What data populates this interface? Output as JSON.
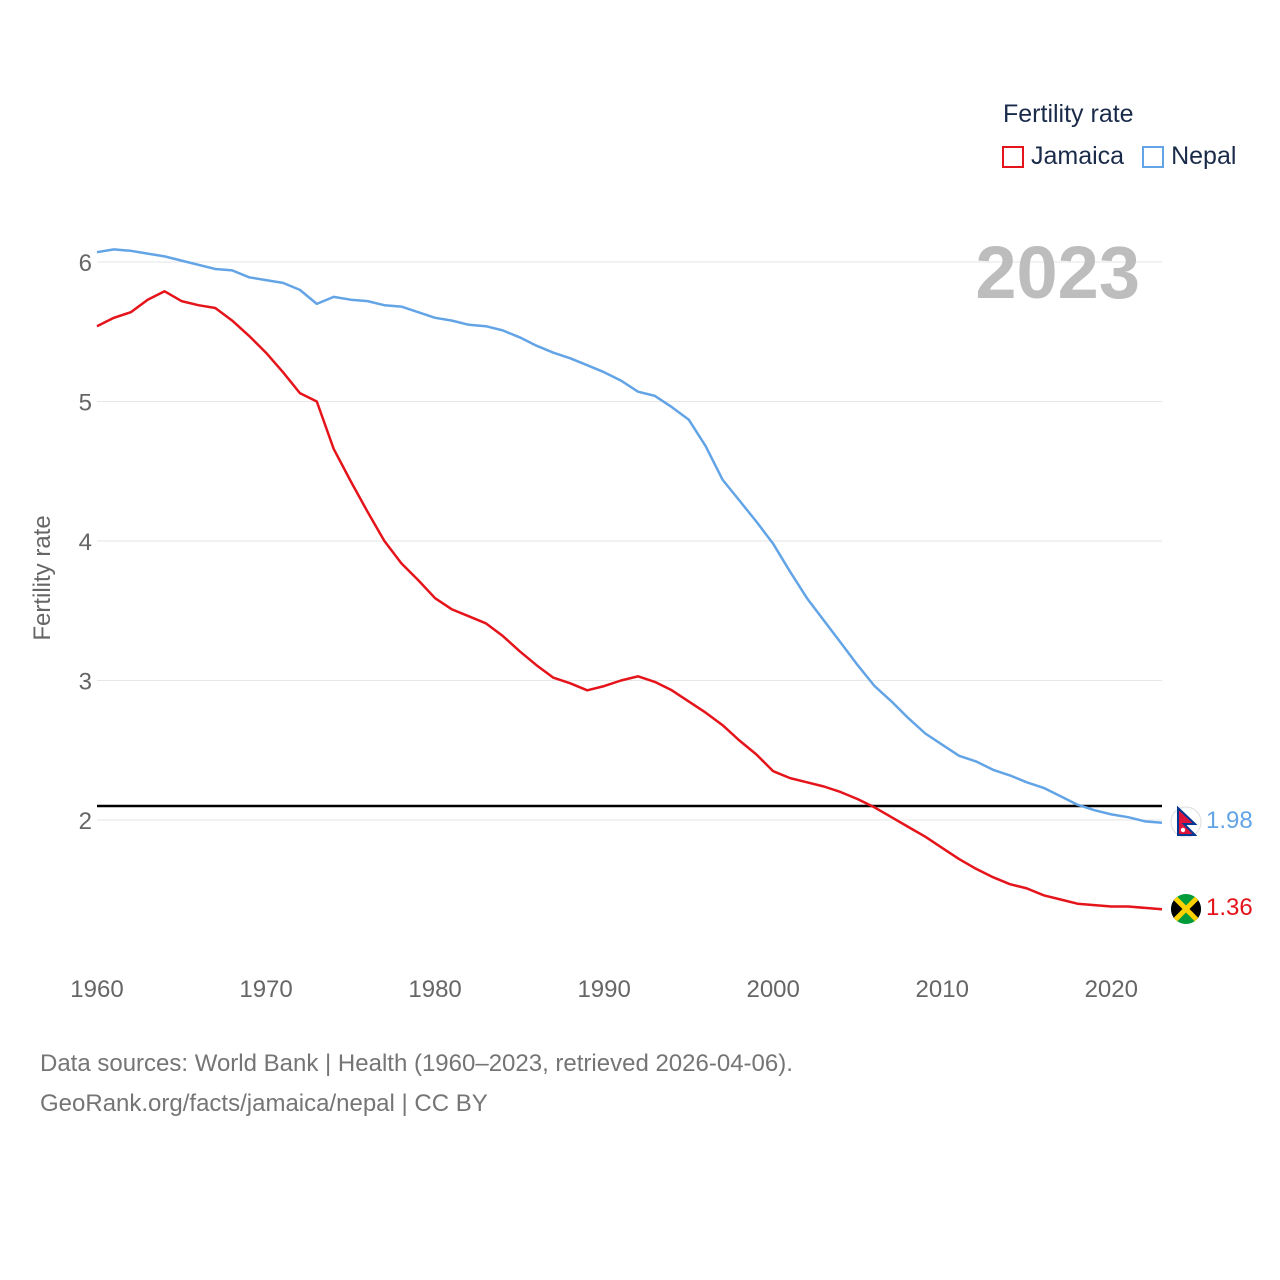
{
  "chart_data": {
    "type": "line",
    "ylabel": "Fertility rate",
    "xlabel": "",
    "year_label": "2023",
    "xlim": [
      1960,
      2023
    ],
    "ylim": [
      1.2,
      6.3
    ],
    "xticks": [
      1960,
      1970,
      1980,
      1990,
      2000,
      2010,
      2020
    ],
    "yticks": [
      2,
      3,
      4,
      5,
      6
    ],
    "reference_line": 2.1,
    "grid": true,
    "legend": {
      "title": "Fertility rate",
      "placement": "top-right",
      "items": [
        {
          "name": "Jamaica",
          "color": "#e5141b"
        },
        {
          "name": "Nepal",
          "color": "#63a4e6"
        }
      ]
    },
    "x": [
      1960,
      1961,
      1962,
      1963,
      1964,
      1965,
      1966,
      1967,
      1968,
      1969,
      1970,
      1971,
      1972,
      1973,
      1974,
      1975,
      1976,
      1977,
      1978,
      1979,
      1980,
      1981,
      1982,
      1983,
      1984,
      1985,
      1986,
      1987,
      1988,
      1989,
      1990,
      1991,
      1992,
      1993,
      1994,
      1995,
      1996,
      1997,
      1998,
      1999,
      2000,
      2001,
      2002,
      2003,
      2004,
      2005,
      2006,
      2007,
      2008,
      2009,
      2010,
      2011,
      2012,
      2013,
      2014,
      2015,
      2016,
      2017,
      2018,
      2019,
      2020,
      2021,
      2022,
      2023
    ],
    "series": [
      {
        "name": "Jamaica",
        "color": "#e5141b",
        "end_label": "1.36",
        "values": [
          5.54,
          5.6,
          5.64,
          5.73,
          5.79,
          5.72,
          5.69,
          5.67,
          5.58,
          5.47,
          5.35,
          5.21,
          5.06,
          5.0,
          4.66,
          4.43,
          4.21,
          4.0,
          3.84,
          3.72,
          3.59,
          3.51,
          3.46,
          3.41,
          3.32,
          3.21,
          3.11,
          3.02,
          2.98,
          2.93,
          2.96,
          3.0,
          3.03,
          2.99,
          2.93,
          2.85,
          2.77,
          2.68,
          2.57,
          2.47,
          2.35,
          2.3,
          2.27,
          2.24,
          2.2,
          2.15,
          2.09,
          2.02,
          1.95,
          1.88,
          1.8,
          1.72,
          1.65,
          1.59,
          1.54,
          1.51,
          1.46,
          1.43,
          1.4,
          1.39,
          1.38,
          1.38,
          1.37,
          1.36
        ]
      },
      {
        "name": "Nepal",
        "color": "#63a4e6",
        "end_label": "1.98",
        "values": [
          6.07,
          6.09,
          6.08,
          6.06,
          6.04,
          6.01,
          5.98,
          5.95,
          5.94,
          5.89,
          5.87,
          5.85,
          5.8,
          5.7,
          5.75,
          5.73,
          5.72,
          5.69,
          5.68,
          5.64,
          5.6,
          5.58,
          5.55,
          5.54,
          5.51,
          5.46,
          5.4,
          5.35,
          5.31,
          5.26,
          5.21,
          5.15,
          5.07,
          5.04,
          4.96,
          4.87,
          4.68,
          4.44,
          4.29,
          4.14,
          3.98,
          3.78,
          3.59,
          3.43,
          3.27,
          3.11,
          2.96,
          2.85,
          2.73,
          2.62,
          2.54,
          2.46,
          2.42,
          2.36,
          2.32,
          2.27,
          2.23,
          2.17,
          2.11,
          2.07,
          2.04,
          2.02,
          1.99,
          1.98
        ]
      }
    ]
  },
  "legend_title": "Fertility rate",
  "legend_jamaica": "Jamaica",
  "legend_nepal": "Nepal",
  "sources_line1": "Data sources: World Bank | Health (1960–2023, retrieved 2026-04-06).",
  "sources_line2": "GeoRank.org/facts/jamaica/nepal | CC BY"
}
